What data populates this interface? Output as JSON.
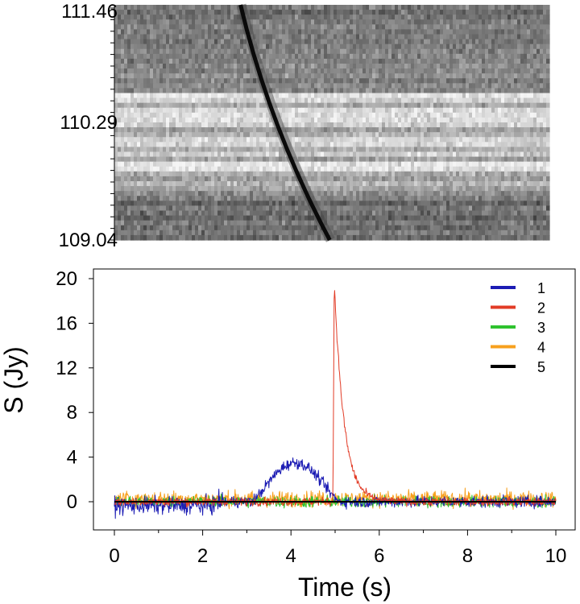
{
  "chart_data": [
    {
      "type": "heatmap",
      "title": "",
      "ylabel": "",
      "xlabel": "",
      "y_ticks": [
        "111.46",
        "110.29",
        "109.04"
      ],
      "ylim": [
        109.04,
        111.46
      ],
      "xlim": [
        0,
        10
      ],
      "colormap": "grayscale (dark = high)",
      "dispersed_sweep": {
        "time_start_s": 2.9,
        "time_end_s": 4.95,
        "freq_start": 111.46,
        "freq_end": 109.04
      },
      "bright_band_freqs": [
        110.49,
        110.35,
        110.23,
        110.05,
        109.92,
        109.8
      ]
    },
    {
      "type": "line",
      "title": "",
      "xlabel": "Time (s)",
      "ylabel": "S (Jy)",
      "xlim": [
        0,
        10
      ],
      "ylim": [
        -3,
        21
      ],
      "x_ticks": [
        "0",
        "2",
        "4",
        "6",
        "8",
        "10"
      ],
      "y_ticks": [
        "0",
        "4",
        "8",
        "12",
        "16",
        "20"
      ],
      "legend_position": "top-right",
      "series": [
        {
          "name": "1",
          "color": "#1c1cb4",
          "shape": "broad hump",
          "peak_time_s": 4.0,
          "peak_value": 3.5,
          "start_s": 3.1,
          "end_s": 5.2,
          "noise_level": 0.55
        },
        {
          "name": "2",
          "color": "#e23b26",
          "shape": "sharp rise, exponential decay",
          "peak_time_s": 4.98,
          "peak_value": 19.8,
          "rise_start_s": 4.95,
          "decay_to_zero_s": 6.2,
          "noise_level": 0.3
        },
        {
          "name": "3",
          "color": "#2ec22e",
          "shape": "flat noise",
          "noise_level": 0.45
        },
        {
          "name": "4",
          "color": "#f7a01e",
          "shape": "flat noise",
          "noise_level": 0.6
        },
        {
          "name": "5",
          "color": "#000000",
          "shape": "flat baseline",
          "value": 0
        }
      ]
    }
  ]
}
